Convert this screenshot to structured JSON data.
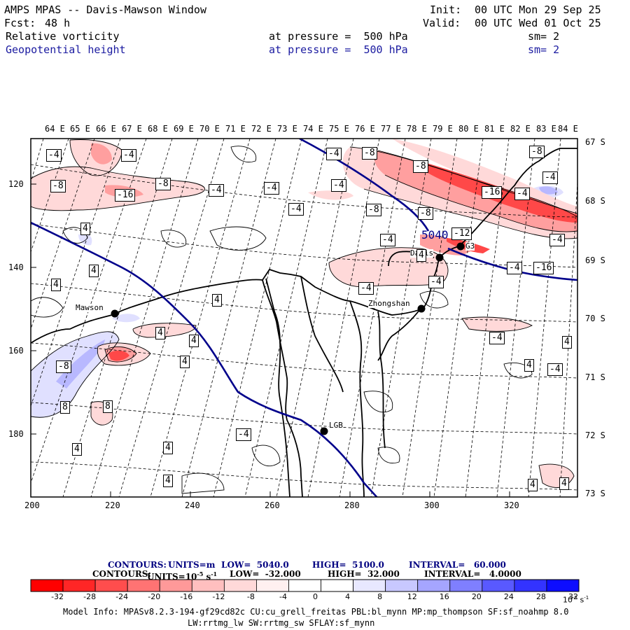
{
  "header": {
    "title": "AMPS MPAS -- Davis-Mawson Window",
    "fcst_label": "Fcst:",
    "fcst_value": "48 h",
    "init_label": "Init:",
    "init_value": "00 UTC Mon 29 Sep 25",
    "valid_label": "Valid:",
    "valid_value": "00 UTC Wed 01 Oct 25",
    "field1_name": "Relative vorticity",
    "field1_level": "at pressure =  500 hPa",
    "field1_sm": "sm= 2",
    "field2_name": "Geopotential height",
    "field2_level": "at pressure =  500 hPa",
    "field2_sm": "sm= 2"
  },
  "map": {
    "top_lon_labels": [
      "64 E",
      "65 E",
      "66 E",
      "67 E",
      "68 E",
      "69 E",
      "70 E",
      "71 E",
      "72 E",
      "73 E",
      "74 E",
      "75 E",
      "76 E",
      "77 E",
      "78 E",
      "79 E",
      "80 E",
      "81 E",
      "82 E",
      "83 E",
      "84 E"
    ],
    "right_lat_labels": [
      "67 S",
      "68 S",
      "69 S",
      "70 S",
      "71 S",
      "72 S",
      "73 S"
    ],
    "left_y_labels": [
      "120",
      "140",
      "160",
      "180"
    ],
    "bottom_x_labels": [
      "200",
      "220",
      "240",
      "260",
      "280",
      "300",
      "320"
    ],
    "stations": [
      {
        "name": "Mawson"
      },
      {
        "name": "Zhongshan"
      },
      {
        "name": "Davis"
      },
      {
        "name": "G3"
      },
      {
        "name": "LGB"
      }
    ],
    "height_label": "5040",
    "contour_labels": [
      "-4",
      "-4",
      "-8",
      "-16",
      "-8",
      "-4",
      "-4",
      "-4",
      "-4",
      "-8",
      "-8",
      "-8",
      "-8",
      "-4",
      "-16",
      "-4",
      "-4",
      "-8",
      "-4",
      "-4",
      "-16",
      "-4",
      "-4",
      "4",
      "4",
      "4",
      "4",
      "4",
      "4",
      "-8",
      "4",
      "8",
      "8",
      "-4",
      "4",
      "4",
      "4",
      "4",
      "4",
      "-4",
      "-4",
      "4",
      "4",
      "-4",
      "4",
      "-12"
    ],
    "colors": {
      "height_contour": "#00008b",
      "coast": "#000000",
      "grid": "#000000"
    }
  },
  "footer": {
    "contours1_label": "CONTOURS:",
    "contours1_units": "UNITS=m",
    "contours1_low": "LOW=  5040.0",
    "contours1_high": "HIGH=  5100.0",
    "contours1_interval": "INTERVAL=   60.000",
    "contours2_label": "CONTOURS:",
    "contours2_units": "UNITS=10",
    "contours2_units_sup": "-5",
    "contours2_units_tail": " s",
    "contours2_units_sup2": "-1",
    "contours2_low": "LOW=  -32.000",
    "contours2_high": "HIGH=  32.000",
    "contours2_interval": "INTERVAL=   4.0000",
    "model_info": "Model Info: MPASv8.2.3-194-gf29cd82c CU:cu_grell_freitas PBL:bl_mynn MP:mp_thompson SF:sf_noahmp 8.0",
    "model_info2": "LW:rrtmg_lw SW:rrtmg_sw SFLAY:sf_mynn"
  },
  "colorbar": {
    "labels": [
      "-32",
      "-28",
      "-24",
      "-20",
      "-16",
      "-12",
      "-8",
      "-4",
      "0",
      "4",
      "8",
      "12",
      "16",
      "20",
      "24",
      "28",
      "32"
    ],
    "unit_label": "10",
    "unit_sup": "-5",
    "unit_tail": " s",
    "unit_sup2": "-1",
    "colors": [
      "#ff0000",
      "#ff2626",
      "#ff4d4d",
      "#ff7373",
      "#ff9999",
      "#ffbfbf",
      "#ffd9d9",
      "#fff0f0",
      "#ffffff",
      "#ffffff",
      "#e8e8ff",
      "#c8c8ff",
      "#a5a5ff",
      "#7f7fff",
      "#5959ff",
      "#3333ff",
      "#0d0dff"
    ]
  }
}
